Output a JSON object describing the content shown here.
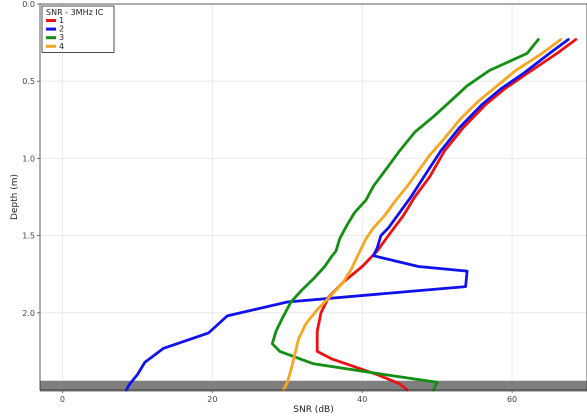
{
  "chart_data": {
    "type": "line",
    "title": "",
    "xlabel": "SNR (dB)",
    "ylabel": "Depth (m)",
    "xlim": [
      -3,
      70
    ],
    "ylim": [
      2.5,
      0
    ],
    "y_inverted": true,
    "grid": true,
    "x_ticks": [
      0,
      20,
      40,
      60
    ],
    "y_ticks": [
      0.0,
      0.5,
      1.0,
      1.5,
      2.0
    ],
    "x_tick_labels": [
      "0",
      "20",
      "40",
      "60"
    ],
    "y_tick_labels": [
      "0.0",
      "0.5",
      "1.0",
      "1.5",
      "2.0"
    ],
    "shaded_band": {
      "y_from": 2.44,
      "y_to": 2.51,
      "color": "#7f7f7f"
    },
    "legend": {
      "title": "SNR - 3MHz IC",
      "position": "top-left"
    },
    "series": [
      {
        "name": "1",
        "color": "#ee1111",
        "points": [
          [
            68.5,
            0.23
          ],
          [
            66,
            0.32
          ],
          [
            62,
            0.45
          ],
          [
            59,
            0.55
          ],
          [
            56.5,
            0.65
          ],
          [
            53.5,
            0.8
          ],
          [
            51,
            0.95
          ],
          [
            49,
            1.12
          ],
          [
            47,
            1.25
          ],
          [
            45.5,
            1.37
          ],
          [
            43.5,
            1.5
          ],
          [
            42,
            1.6
          ],
          [
            40,
            1.7
          ],
          [
            37.5,
            1.8
          ],
          [
            35.5,
            1.9
          ],
          [
            34.5,
            2.0
          ],
          [
            34,
            2.12
          ],
          [
            34,
            2.25
          ],
          [
            36,
            2.3
          ],
          [
            39,
            2.35
          ],
          [
            42,
            2.4
          ],
          [
            45,
            2.46
          ],
          [
            46,
            2.5
          ]
        ]
      },
      {
        "name": "2",
        "color": "#1111ee",
        "points": [
          [
            67.5,
            0.23
          ],
          [
            65,
            0.32
          ],
          [
            61.5,
            0.45
          ],
          [
            58.5,
            0.55
          ],
          [
            56,
            0.65
          ],
          [
            53,
            0.8
          ],
          [
            50.5,
            0.95
          ],
          [
            48.5,
            1.1
          ],
          [
            46.5,
            1.25
          ],
          [
            45,
            1.35
          ],
          [
            43.5,
            1.45
          ],
          [
            42.5,
            1.5
          ],
          [
            42,
            1.58
          ],
          [
            41.5,
            1.63
          ],
          [
            47.5,
            1.7
          ],
          [
            54,
            1.73
          ],
          [
            53.8,
            1.83
          ],
          [
            30,
            1.93
          ],
          [
            22,
            2.02
          ],
          [
            19.5,
            2.13
          ],
          [
            13.5,
            2.23
          ],
          [
            11,
            2.32
          ],
          [
            10,
            2.4
          ],
          [
            9,
            2.46
          ],
          [
            8.5,
            2.5
          ]
        ]
      },
      {
        "name": "3",
        "color": "#138f13",
        "points": [
          [
            63.5,
            0.23
          ],
          [
            62,
            0.32
          ],
          [
            57,
            0.43
          ],
          [
            54,
            0.53
          ],
          [
            52,
            0.62
          ],
          [
            49.5,
            0.73
          ],
          [
            47,
            0.83
          ],
          [
            45,
            0.95
          ],
          [
            43.5,
            1.05
          ],
          [
            41.5,
            1.18
          ],
          [
            40.5,
            1.27
          ],
          [
            39,
            1.35
          ],
          [
            38,
            1.43
          ],
          [
            37,
            1.52
          ],
          [
            36.5,
            1.6
          ],
          [
            36,
            1.63
          ],
          [
            35,
            1.7
          ],
          [
            33.5,
            1.78
          ],
          [
            32,
            1.85
          ],
          [
            30.5,
            1.93
          ],
          [
            29.5,
            2.02
          ],
          [
            28.5,
            2.12
          ],
          [
            28,
            2.2
          ],
          [
            29,
            2.25
          ],
          [
            33.5,
            2.33
          ],
          [
            43,
            2.4
          ],
          [
            50,
            2.45
          ],
          [
            49.5,
            2.5
          ]
        ]
      },
      {
        "name": "4",
        "color": "#f5a623",
        "points": [
          [
            66.5,
            0.23
          ],
          [
            64,
            0.32
          ],
          [
            60.5,
            0.43
          ],
          [
            58,
            0.53
          ],
          [
            55.5,
            0.63
          ],
          [
            53,
            0.75
          ],
          [
            51,
            0.87
          ],
          [
            49,
            0.98
          ],
          [
            47.5,
            1.08
          ],
          [
            46,
            1.18
          ],
          [
            44.5,
            1.27
          ],
          [
            43,
            1.37
          ],
          [
            41.5,
            1.45
          ],
          [
            40.5,
            1.52
          ],
          [
            39.5,
            1.62
          ],
          [
            38.5,
            1.72
          ],
          [
            37.5,
            1.8
          ],
          [
            36,
            1.88
          ],
          [
            34,
            1.98
          ],
          [
            32.5,
            2.07
          ],
          [
            31.5,
            2.17
          ],
          [
            31,
            2.27
          ],
          [
            30.5,
            2.37
          ],
          [
            30,
            2.45
          ],
          [
            29.5,
            2.5
          ]
        ]
      }
    ]
  }
}
